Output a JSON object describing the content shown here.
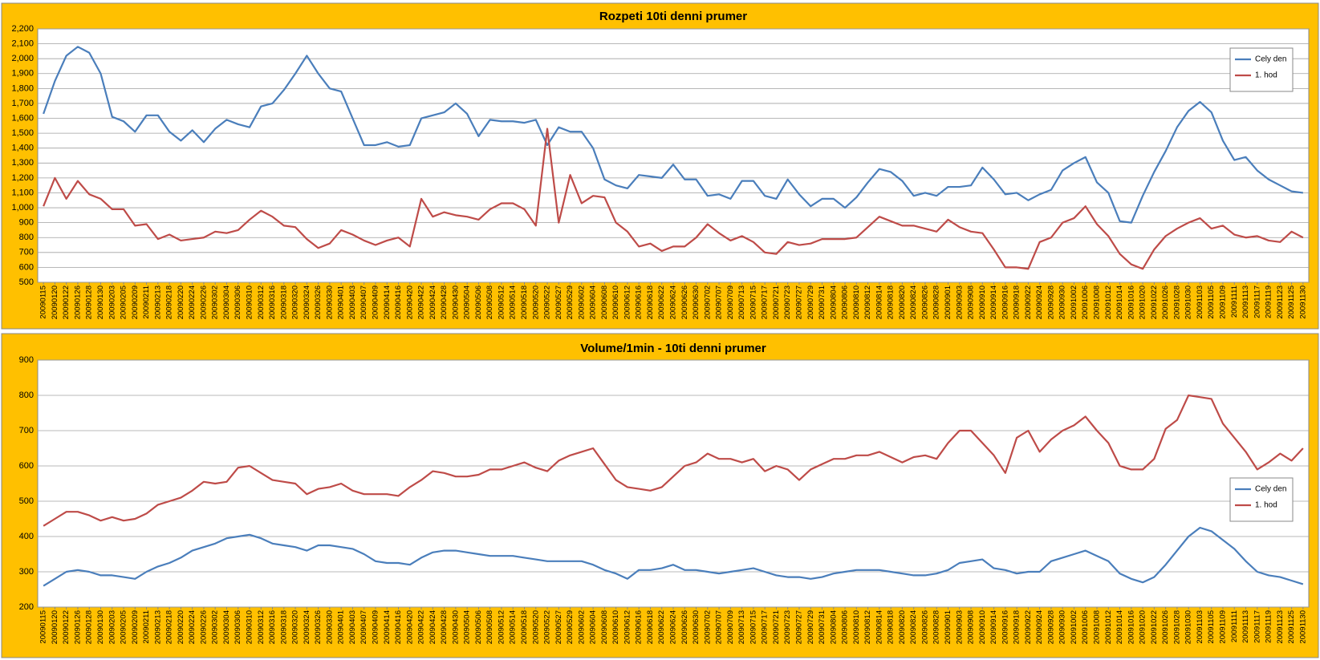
{
  "chart_data": [
    {
      "type": "line",
      "title": "Rozpeti 10ti denni prumer",
      "categories": [
        "20090115",
        "20090120",
        "20090122",
        "20090126",
        "20090128",
        "20090130",
        "20090203",
        "20090205",
        "20090209",
        "20090211",
        "20090213",
        "20090218",
        "20090220",
        "20090224",
        "20090226",
        "20090302",
        "20090304",
        "20090306",
        "20090310",
        "20090312",
        "20090316",
        "20090318",
        "20090320",
        "20090324",
        "20090326",
        "20090330",
        "20090401",
        "20090403",
        "20090407",
        "20090409",
        "20090414",
        "20090416",
        "20090420",
        "20090422",
        "20090424",
        "20090428",
        "20090430",
        "20090504",
        "20090506",
        "20090508",
        "20090512",
        "20090514",
        "20090518",
        "20090520",
        "20090522",
        "20090527",
        "20090529",
        "20090602",
        "20090604",
        "20090608",
        "20090610",
        "20090612",
        "20090616",
        "20090618",
        "20090622",
        "20090624",
        "20090626",
        "20090630",
        "20090702",
        "20090707",
        "20090709",
        "20090713",
        "20090715",
        "20090717",
        "20090721",
        "20090723",
        "20090727",
        "20090729",
        "20090731",
        "20090804",
        "20090806",
        "20090810",
        "20090812",
        "20090814",
        "20090818",
        "20090820",
        "20090824",
        "20090826",
        "20090828",
        "20090901",
        "20090903",
        "20090908",
        "20090910",
        "20090914",
        "20090916",
        "20090918",
        "20090922",
        "20090924",
        "20090928",
        "20090930",
        "20091002",
        "20091006",
        "20091008",
        "20091012",
        "20091014",
        "20091016",
        "20091020",
        "20091022",
        "20091026",
        "20091028",
        "20091030",
        "20091103",
        "20091105",
        "20091109",
        "20091111",
        "20091113",
        "20091117",
        "20091119",
        "20091123",
        "20091125",
        "20091130"
      ],
      "series": [
        {
          "name": "Cely den",
          "color": "#4a7ebb",
          "values": [
            1630,
            1850,
            2020,
            2080,
            2040,
            1900,
            1610,
            1580,
            1510,
            1620,
            1620,
            1510,
            1450,
            1520,
            1440,
            1530,
            1590,
            1560,
            1540,
            1680,
            1700,
            1790,
            1900,
            2020,
            1900,
            1800,
            1780,
            1600,
            1420,
            1420,
            1440,
            1410,
            1420,
            1600,
            1620,
            1640,
            1700,
            1630,
            1480,
            1590,
            1580,
            1580,
            1570,
            1590,
            1420,
            1540,
            1510,
            1510,
            1400,
            1190,
            1150,
            1130,
            1220,
            1210,
            1200,
            1290,
            1190,
            1190,
            1080,
            1090,
            1060,
            1180,
            1180,
            1080,
            1060,
            1190,
            1090,
            1010,
            1060,
            1060,
            1000,
            1070,
            1170,
            1260,
            1240,
            1180,
            1080,
            1100,
            1080,
            1140,
            1140,
            1150,
            1270,
            1190,
            1090,
            1100,
            1050,
            1090,
            1120,
            1250,
            1300,
            1340,
            1170,
            1100,
            910,
            900,
            1080,
            1240,
            1380,
            1540,
            1650,
            1710,
            1640,
            1450,
            1320,
            1340,
            1250,
            1190,
            1150,
            1110,
            1100
          ]
        },
        {
          "name": "1. hod",
          "color": "#be4b48",
          "values": [
            1010,
            1200,
            1060,
            1180,
            1090,
            1060,
            990,
            990,
            880,
            890,
            790,
            820,
            780,
            790,
            800,
            840,
            830,
            850,
            920,
            980,
            940,
            880,
            870,
            790,
            730,
            760,
            850,
            820,
            780,
            750,
            780,
            800,
            740,
            1060,
            940,
            970,
            950,
            940,
            920,
            990,
            1030,
            1030,
            990,
            880,
            1530,
            900,
            1220,
            1030,
            1080,
            1070,
            900,
            840,
            740,
            760,
            710,
            740,
            740,
            800,
            890,
            830,
            780,
            810,
            770,
            700,
            690,
            770,
            750,
            760,
            790,
            790,
            790,
            800,
            870,
            940,
            910,
            880,
            880,
            860,
            840,
            920,
            870,
            840,
            830,
            720,
            600,
            600,
            590,
            770,
            800,
            900,
            930,
            1010,
            890,
            810,
            690,
            620,
            590,
            720,
            810,
            860,
            900,
            930,
            860,
            880,
            820,
            800,
            810,
            780,
            770,
            840,
            800
          ]
        }
      ],
      "ylim": [
        500,
        2200
      ],
      "yticks": [
        500,
        600,
        700,
        800,
        900,
        {
          "value": 1000,
          "label": "1,000"
        },
        {
          "value": 1100,
          "label": "1,100"
        },
        {
          "value": 1200,
          "label": "1,200"
        },
        {
          "value": 1300,
          "label": "1,300"
        },
        {
          "value": 1400,
          "label": "1,400"
        },
        {
          "value": 1500,
          "label": "1,500"
        },
        {
          "value": 1600,
          "label": "1,600"
        },
        {
          "value": 1700,
          "label": "1,700"
        },
        {
          "value": 1800,
          "label": "1,800"
        },
        {
          "value": 1900,
          "label": "1,900"
        },
        {
          "value": 2000,
          "label": "2,000"
        },
        {
          "value": 2100,
          "label": "2,100"
        },
        {
          "value": 2200,
          "label": "2,200"
        }
      ],
      "grid": true,
      "legend": "upper right"
    },
    {
      "type": "line",
      "title": "Volume/1min - 10ti denni prumer",
      "categories": [
        "20090115",
        "20090120",
        "20090122",
        "20090126",
        "20090128",
        "20090130",
        "20090203",
        "20090205",
        "20090209",
        "20090211",
        "20090213",
        "20090218",
        "20090220",
        "20090224",
        "20090226",
        "20090302",
        "20090304",
        "20090306",
        "20090310",
        "20090312",
        "20090316",
        "20090318",
        "20090320",
        "20090324",
        "20090326",
        "20090330",
        "20090401",
        "20090403",
        "20090407",
        "20090409",
        "20090414",
        "20090416",
        "20090420",
        "20090422",
        "20090424",
        "20090428",
        "20090430",
        "20090504",
        "20090506",
        "20090508",
        "20090512",
        "20090514",
        "20090518",
        "20090520",
        "20090522",
        "20090527",
        "20090529",
        "20090602",
        "20090604",
        "20090608",
        "20090610",
        "20090612",
        "20090616",
        "20090618",
        "20090622",
        "20090624",
        "20090626",
        "20090630",
        "20090702",
        "20090707",
        "20090709",
        "20090713",
        "20090715",
        "20090717",
        "20090721",
        "20090723",
        "20090727",
        "20090729",
        "20090731",
        "20090804",
        "20090806",
        "20090810",
        "20090812",
        "20090814",
        "20090818",
        "20090820",
        "20090824",
        "20090826",
        "20090828",
        "20090901",
        "20090903",
        "20090908",
        "20090910",
        "20090914",
        "20090916",
        "20090918",
        "20090922",
        "20090924",
        "20090928",
        "20090930",
        "20091002",
        "20091006",
        "20091008",
        "20091012",
        "20091014",
        "20091016",
        "20091020",
        "20091022",
        "20091026",
        "20091028",
        "20091030",
        "20091103",
        "20091105",
        "20091109",
        "20091111",
        "20091113",
        "20091117",
        "20091119",
        "20091123",
        "20091125",
        "20091130"
      ],
      "series": [
        {
          "name": "Cely den",
          "color": "#4a7ebb",
          "values": [
            260,
            280,
            300,
            305,
            300,
            290,
            290,
            285,
            280,
            300,
            315,
            325,
            340,
            360,
            370,
            380,
            395,
            400,
            405,
            395,
            380,
            375,
            370,
            360,
            375,
            375,
            370,
            365,
            350,
            330,
            325,
            325,
            320,
            340,
            355,
            360,
            360,
            355,
            350,
            345,
            345,
            345,
            340,
            335,
            330,
            330,
            330,
            330,
            320,
            305,
            295,
            280,
            305,
            305,
            310,
            320,
            305,
            305,
            300,
            295,
            300,
            305,
            310,
            300,
            290,
            285,
            285,
            280,
            285,
            295,
            300,
            305,
            305,
            305,
            300,
            295,
            290,
            290,
            295,
            305,
            325,
            330,
            335,
            310,
            305,
            295,
            300,
            300,
            330,
            340,
            350,
            360,
            345,
            330,
            295,
            280,
            270,
            285,
            320,
            360,
            400,
            425,
            415,
            390,
            365,
            330,
            300,
            290,
            285,
            275,
            265
          ]
        },
        {
          "name": "1. hod",
          "color": "#be4b48",
          "values": [
            430,
            450,
            470,
            470,
            460,
            445,
            455,
            445,
            450,
            465,
            490,
            500,
            510,
            530,
            555,
            550,
            555,
            595,
            600,
            580,
            560,
            555,
            550,
            520,
            535,
            540,
            550,
            530,
            520,
            520,
            520,
            515,
            540,
            560,
            585,
            580,
            570,
            570,
            575,
            590,
            590,
            600,
            610,
            595,
            585,
            615,
            630,
            640,
            650,
            605,
            560,
            540,
            535,
            530,
            540,
            570,
            600,
            610,
            635,
            620,
            620,
            610,
            620,
            585,
            600,
            590,
            560,
            590,
            605,
            620,
            620,
            630,
            630,
            640,
            625,
            610,
            625,
            630,
            620,
            665,
            700,
            700,
            665,
            630,
            580,
            680,
            700,
            640,
            675,
            700,
            715,
            740,
            700,
            665,
            600,
            590,
            590,
            620,
            705,
            730,
            800,
            795,
            790,
            720,
            680,
            640,
            590,
            610,
            635,
            615,
            650
          ]
        }
      ],
      "ylim": [
        200,
        900
      ],
      "yticks": [
        200,
        300,
        400,
        500,
        600,
        700,
        800,
        900
      ],
      "grid": true,
      "legend": "right"
    }
  ]
}
